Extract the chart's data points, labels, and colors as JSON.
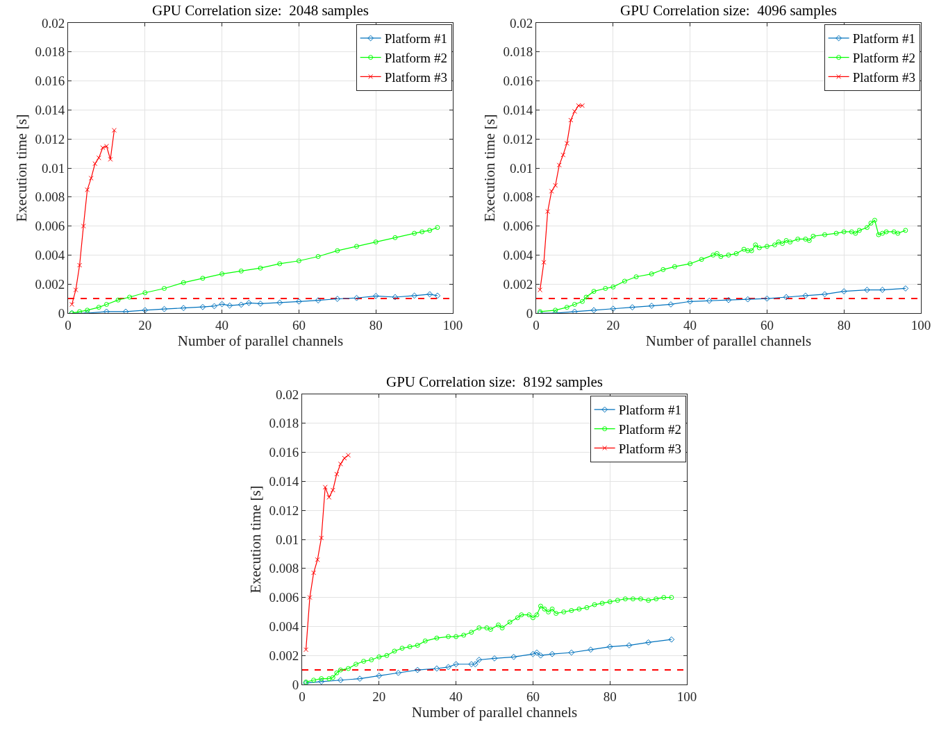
{
  "chart_data": [
    {
      "type": "line",
      "title": "GPU Correlation size:  2048 samples",
      "xlabel": "Number of parallel channels",
      "ylabel": "Execution time [s]",
      "xlim": [
        0,
        100
      ],
      "xticks": [
        0,
        20,
        40,
        60,
        80,
        100
      ],
      "ylim": [
        0,
        0.02
      ],
      "yticks": [
        0,
        0.002,
        0.004,
        0.006,
        0.008,
        0.01,
        0.012,
        0.014,
        0.016,
        0.018,
        0.02
      ],
      "grid": true,
      "legend": "top right",
      "ref_lines": [
        {
          "axis": "y",
          "value": 0.001,
          "color": "#ff0000",
          "line_style": "dashed"
        }
      ],
      "series": [
        {
          "name": "Platform #1",
          "color": "#0072bd",
          "marker": "diamond",
          "x": [
            1,
            5,
            10,
            15,
            20,
            25,
            30,
            35,
            38,
            40,
            42,
            45,
            47,
            50,
            55,
            60,
            65,
            70,
            75,
            80,
            85,
            90,
            94,
            96
          ],
          "values": [
            0,
            0,
            0.0001,
            0.0001,
            0.0002,
            0.00028,
            0.00035,
            0.00042,
            0.00048,
            0.00062,
            0.00052,
            0.00058,
            0.0007,
            0.00065,
            0.00072,
            0.0008,
            0.00088,
            0.00098,
            0.00104,
            0.00118,
            0.0011,
            0.0012,
            0.0013,
            0.0012
          ]
        },
        {
          "name": "Platform #2",
          "color": "#00ff00",
          "marker": "circle",
          "x": [
            1,
            3,
            5,
            8,
            10,
            13,
            16,
            20,
            25,
            30,
            35,
            40,
            45,
            50,
            55,
            60,
            65,
            70,
            75,
            80,
            85,
            90,
            92,
            94,
            96
          ],
          "values": [
            0,
            0.0001,
            0.0002,
            0.0004,
            0.0006,
            0.0009,
            0.0011,
            0.0014,
            0.0017,
            0.0021,
            0.0024,
            0.0027,
            0.0029,
            0.0031,
            0.0034,
            0.0036,
            0.0039,
            0.0043,
            0.0046,
            0.0049,
            0.0052,
            0.0055,
            0.0056,
            0.0057,
            0.0059
          ]
        },
        {
          "name": "Platform #3",
          "color": "#ff0000",
          "marker": "cross",
          "x": [
            1,
            2,
            3,
            4,
            5,
            6,
            7,
            8,
            9,
            10,
            11,
            12
          ],
          "values": [
            0.0006,
            0.0016,
            0.0033,
            0.006,
            0.0085,
            0.0093,
            0.0103,
            0.0107,
            0.0114,
            0.0115,
            0.0106,
            0.0126
          ]
        }
      ]
    },
    {
      "type": "line",
      "title": "GPU Correlation size:  4096 samples",
      "xlabel": "Number of parallel channels",
      "ylabel": "Execution time [s]",
      "xlim": [
        0,
        100
      ],
      "xticks": [
        0,
        20,
        40,
        60,
        80,
        100
      ],
      "ylim": [
        0,
        0.02
      ],
      "yticks": [
        0,
        0.002,
        0.004,
        0.006,
        0.008,
        0.01,
        0.012,
        0.014,
        0.016,
        0.018,
        0.02
      ],
      "grid": true,
      "legend": "top right",
      "ref_lines": [
        {
          "axis": "y",
          "value": 0.001,
          "color": "#ff0000",
          "line_style": "dashed"
        }
      ],
      "series": [
        {
          "name": "Platform #1",
          "color": "#0072bd",
          "marker": "diamond",
          "x": [
            1,
            5,
            10,
            15,
            20,
            25,
            30,
            35,
            40,
            45,
            50,
            55,
            60,
            65,
            70,
            75,
            80,
            86,
            90,
            96
          ],
          "values": [
            0,
            0,
            0.0001,
            0.0002,
            0.0003,
            0.0004,
            0.0005,
            0.0006,
            0.0008,
            0.00085,
            0.0009,
            0.00095,
            0.001,
            0.0011,
            0.0012,
            0.0013,
            0.0015,
            0.0016,
            0.0016,
            0.0017
          ]
        },
        {
          "name": "Platform #2",
          "color": "#00ff00",
          "marker": "circle",
          "x": [
            1,
            5,
            8,
            10,
            12,
            13,
            15,
            18,
            20,
            23,
            26,
            30,
            33,
            36,
            40,
            43,
            46,
            47,
            48,
            50,
            52,
            54,
            55,
            56,
            57,
            58,
            60,
            62,
            63,
            64,
            65,
            66,
            68,
            70,
            71,
            72,
            75,
            78,
            80,
            82,
            83,
            84,
            86,
            87,
            88,
            89,
            90,
            91,
            93,
            94,
            96
          ],
          "values": [
            0.0001,
            0.0002,
            0.0004,
            0.0006,
            0.0008,
            0.0011,
            0.0015,
            0.0017,
            0.0018,
            0.0022,
            0.0025,
            0.0027,
            0.003,
            0.0032,
            0.0034,
            0.0037,
            0.004,
            0.0041,
            0.0039,
            0.004,
            0.0041,
            0.0044,
            0.0043,
            0.0043,
            0.0047,
            0.0045,
            0.0046,
            0.0047,
            0.0049,
            0.0048,
            0.005,
            0.0049,
            0.0051,
            0.0051,
            0.005,
            0.0053,
            0.0054,
            0.0055,
            0.0056,
            0.0056,
            0.0055,
            0.0057,
            0.0059,
            0.0062,
            0.0064,
            0.0054,
            0.0055,
            0.0056,
            0.0056,
            0.0055,
            0.0057
          ]
        },
        {
          "name": "Platform #3",
          "color": "#ff0000",
          "marker": "cross",
          "x": [
            1,
            2,
            3,
            4,
            5,
            6,
            7,
            8,
            9,
            10,
            11,
            12
          ],
          "values": [
            0.0016,
            0.0035,
            0.007,
            0.0084,
            0.0088,
            0.0102,
            0.0109,
            0.0117,
            0.0133,
            0.0139,
            0.0143,
            0.0143
          ]
        }
      ]
    },
    {
      "type": "line",
      "title": "GPU Correlation size:  8192 samples",
      "xlabel": "Number of parallel channels",
      "ylabel": "Execution time [s]",
      "xlim": [
        0,
        100
      ],
      "xticks": [
        0,
        20,
        40,
        60,
        80,
        100
      ],
      "ylim": [
        0,
        0.02
      ],
      "yticks": [
        0,
        0.002,
        0.004,
        0.006,
        0.008,
        0.01,
        0.012,
        0.014,
        0.016,
        0.018,
        0.02
      ],
      "grid": true,
      "legend": "top right",
      "ref_lines": [
        {
          "axis": "y",
          "value": 0.001,
          "color": "#ff0000",
          "line_style": "dashed"
        }
      ],
      "series": [
        {
          "name": "Platform #1",
          "color": "#0072bd",
          "marker": "diamond",
          "x": [
            1,
            5,
            10,
            15,
            20,
            25,
            30,
            35,
            38,
            40,
            44,
            45,
            46,
            50,
            55,
            60,
            61,
            62,
            65,
            70,
            75,
            80,
            85,
            90,
            96
          ],
          "values": [
            0.0001,
            0.0002,
            0.0003,
            0.0004,
            0.0006,
            0.0008,
            0.001,
            0.0011,
            0.0012,
            0.0014,
            0.0014,
            0.0014,
            0.0017,
            0.0018,
            0.0019,
            0.0021,
            0.0022,
            0.002,
            0.0021,
            0.0022,
            0.0024,
            0.0026,
            0.0027,
            0.0029,
            0.0031
          ]
        },
        {
          "name": "Platform #2",
          "color": "#00ff00",
          "marker": "circle",
          "x": [
            1,
            3,
            5,
            7,
            8,
            9,
            10,
            12,
            14,
            16,
            18,
            20,
            22,
            24,
            26,
            28,
            30,
            32,
            35,
            38,
            40,
            42,
            44,
            46,
            48,
            49,
            51,
            52,
            54,
            56,
            57,
            59,
            60,
            61,
            62,
            63,
            64,
            65,
            66,
            68,
            70,
            72,
            74,
            76,
            78,
            80,
            82,
            84,
            86,
            88,
            90,
            92,
            94,
            96
          ],
          "values": [
            0.00017,
            0.0003,
            0.0004,
            0.0004,
            0.00048,
            0.0008,
            0.001,
            0.0011,
            0.0014,
            0.0016,
            0.0017,
            0.0019,
            0.002,
            0.0023,
            0.0025,
            0.0026,
            0.0027,
            0.003,
            0.0032,
            0.0033,
            0.0033,
            0.0034,
            0.0036,
            0.0039,
            0.0039,
            0.0038,
            0.0041,
            0.0039,
            0.0043,
            0.0046,
            0.0048,
            0.0048,
            0.0046,
            0.0048,
            0.0054,
            0.0052,
            0.005,
            0.0052,
            0.0049,
            0.005,
            0.0051,
            0.0052,
            0.0053,
            0.0055,
            0.0056,
            0.0057,
            0.0058,
            0.0059,
            0.0059,
            0.0059,
            0.0058,
            0.0059,
            0.006,
            0.006
          ]
        },
        {
          "name": "Platform #3",
          "color": "#ff0000",
          "marker": "cross",
          "x": [
            1,
            2,
            3,
            4,
            5,
            6,
            7,
            8,
            9,
            10,
            11,
            12
          ],
          "values": [
            0.0024,
            0.006,
            0.0077,
            0.0086,
            0.0101,
            0.0136,
            0.0129,
            0.0134,
            0.0145,
            0.0152,
            0.0156,
            0.0158
          ]
        }
      ]
    }
  ]
}
